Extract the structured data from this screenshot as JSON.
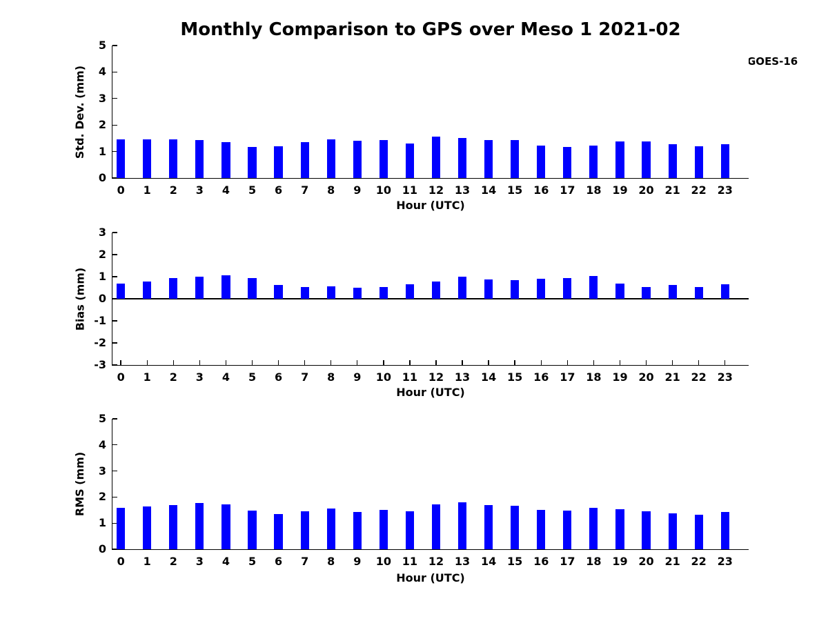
{
  "figure": {
    "title": "Monthly Comparison to GPS over Meso 1 2021-02",
    "background": "#ffffff"
  },
  "legend": {
    "label": "GOES-16",
    "color": "#0000ff",
    "position": "top-right"
  },
  "chart_data": [
    {
      "type": "bar",
      "series_name": "GOES-16",
      "bar_color": "#0000ff",
      "title": "",
      "xlabel": "Hour (UTC)",
      "ylabel": "Std. Dev. (mm)",
      "categories": [
        0,
        1,
        2,
        3,
        4,
        5,
        6,
        7,
        8,
        9,
        10,
        11,
        12,
        13,
        14,
        15,
        16,
        17,
        18,
        19,
        20,
        21,
        22,
        23
      ],
      "values": [
        1.45,
        1.46,
        1.45,
        1.44,
        1.36,
        1.18,
        1.21,
        1.36,
        1.46,
        1.4,
        1.42,
        1.31,
        1.56,
        1.51,
        1.44,
        1.44,
        1.22,
        1.18,
        1.22,
        1.37,
        1.38,
        1.27,
        1.19,
        1.28
      ],
      "ylim": [
        0,
        5
      ],
      "yticks": [
        0,
        1,
        2,
        3,
        4,
        5
      ],
      "xlim": [
        -0.32,
        23.9
      ],
      "bar_width_units": 0.32,
      "grid": false
    },
    {
      "type": "bar",
      "series_name": "GOES-16",
      "bar_color": "#0000ff",
      "title": "",
      "xlabel": "Hour (UTC)",
      "ylabel": "Bias (mm)",
      "categories": [
        0,
        1,
        2,
        3,
        4,
        5,
        6,
        7,
        8,
        9,
        10,
        11,
        12,
        13,
        14,
        15,
        16,
        17,
        18,
        19,
        20,
        21,
        22,
        23
      ],
      "values": [
        0.7,
        0.77,
        0.95,
        1.0,
        1.06,
        0.93,
        0.64,
        0.52,
        0.55,
        0.49,
        0.52,
        0.67,
        0.77,
        1.01,
        0.88,
        0.85,
        0.91,
        0.94,
        1.03,
        0.7,
        0.54,
        0.61,
        0.53,
        0.66
      ],
      "ylim": [
        -3,
        3
      ],
      "yticks": [
        -3,
        -2,
        -1,
        0,
        1,
        2,
        3
      ],
      "xlim": [
        -0.32,
        23.9
      ],
      "bar_width_units": 0.32,
      "grid": false
    },
    {
      "type": "bar",
      "series_name": "GOES-16",
      "bar_color": "#0000ff",
      "title": "",
      "xlabel": "Hour (UTC)",
      "ylabel": "RMS (mm)",
      "categories": [
        0,
        1,
        2,
        3,
        4,
        5,
        6,
        7,
        8,
        9,
        10,
        11,
        12,
        13,
        14,
        15,
        16,
        17,
        18,
        19,
        20,
        21,
        22,
        23
      ],
      "values": [
        1.6,
        1.63,
        1.7,
        1.76,
        1.73,
        1.47,
        1.35,
        1.45,
        1.55,
        1.44,
        1.51,
        1.45,
        1.73,
        1.81,
        1.69,
        1.67,
        1.52,
        1.48,
        1.58,
        1.54,
        1.46,
        1.37,
        1.31,
        1.43
      ],
      "ylim": [
        0,
        5
      ],
      "yticks": [
        0,
        1,
        2,
        3,
        4,
        5
      ],
      "xlim": [
        -0.32,
        23.9
      ],
      "bar_width_units": 0.32,
      "grid": false
    }
  ]
}
